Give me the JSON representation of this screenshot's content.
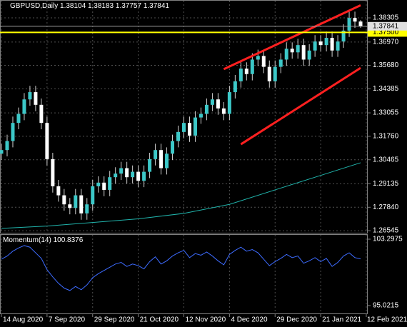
{
  "chart_data": [
    {
      "type": "candlestick",
      "title": "GBPUSD,Daily",
      "up_color": "#3cc8c8",
      "down_color": "#ffffff",
      "wick_color": "#d0d0d0",
      "open": [
        1.308,
        1.31,
        1.315,
        1.325,
        1.33,
        1.338,
        1.342,
        1.335,
        1.325,
        1.305,
        1.29,
        1.285,
        1.28,
        1.278,
        1.285,
        1.275,
        1.28,
        1.29,
        1.292,
        1.288,
        1.295,
        1.297,
        1.3,
        1.295,
        1.298,
        1.293,
        1.298,
        1.305,
        1.31,
        1.3,
        1.308,
        1.315,
        1.32,
        1.325,
        1.318,
        1.328,
        1.33,
        1.335,
        1.338,
        1.333,
        1.33,
        1.342,
        1.348,
        1.355,
        1.352,
        1.36,
        1.362,
        1.356,
        1.348,
        1.356,
        1.36,
        1.366,
        1.364,
        1.368,
        1.36,
        1.365,
        1.37,
        1.368,
        1.372,
        1.365,
        1.37,
        1.376,
        1.383,
        1.38104
      ],
      "high": [
        1.3135,
        1.3185,
        1.3285,
        1.3335,
        1.3415,
        1.3455,
        1.3455,
        1.3385,
        1.3285,
        1.3085,
        1.2935,
        1.2885,
        1.2835,
        1.2885,
        1.2885,
        1.2835,
        1.2935,
        1.2955,
        1.2955,
        1.2985,
        1.3005,
        1.3035,
        1.3035,
        1.3015,
        1.3015,
        1.3015,
        1.3085,
        1.3135,
        1.3135,
        1.3115,
        1.3185,
        1.3235,
        1.3285,
        1.3285,
        1.3315,
        1.3335,
        1.3385,
        1.3415,
        1.3415,
        1.3365,
        1.3455,
        1.3515,
        1.3585,
        1.3585,
        1.3635,
        1.3655,
        1.3655,
        1.3595,
        1.3595,
        1.3635,
        1.3695,
        1.3695,
        1.3715,
        1.3715,
        1.3685,
        1.3735,
        1.3735,
        1.3755,
        1.3755,
        1.3735,
        1.3795,
        1.3865,
        1.3865,
        1.38183
      ],
      "low": [
        1.3045,
        1.3065,
        1.3115,
        1.3215,
        1.3265,
        1.3345,
        1.3315,
        1.3215,
        1.3015,
        1.2865,
        1.2815,
        1.2765,
        1.2745,
        1.2745,
        1.2715,
        1.2715,
        1.2765,
        1.2865,
        1.2845,
        1.2845,
        1.2915,
        1.2935,
        1.2915,
        1.2915,
        1.2895,
        1.2895,
        1.2945,
        1.3015,
        1.2965,
        1.2965,
        1.3045,
        1.3115,
        1.3165,
        1.3145,
        1.3145,
        1.3245,
        1.3265,
        1.3315,
        1.3295,
        1.3265,
        1.3265,
        1.3385,
        1.3445,
        1.3485,
        1.3485,
        1.3565,
        1.3525,
        1.3445,
        1.3445,
        1.3525,
        1.3565,
        1.3605,
        1.3605,
        1.3565,
        1.3565,
        1.3615,
        1.3645,
        1.3645,
        1.3615,
        1.3615,
        1.3665,
        1.3725,
        1.3775,
        1.37757
      ],
      "close": [
        1.31,
        1.315,
        1.325,
        1.33,
        1.338,
        1.342,
        1.335,
        1.325,
        1.305,
        1.29,
        1.285,
        1.28,
        1.278,
        1.285,
        1.275,
        1.28,
        1.29,
        1.292,
        1.288,
        1.295,
        1.297,
        1.3,
        1.295,
        1.298,
        1.293,
        1.298,
        1.305,
        1.31,
        1.3,
        1.308,
        1.315,
        1.32,
        1.325,
        1.318,
        1.328,
        1.33,
        1.335,
        1.338,
        1.333,
        1.33,
        1.342,
        1.348,
        1.355,
        1.352,
        1.36,
        1.362,
        1.356,
        1.348,
        1.356,
        1.36,
        1.366,
        1.364,
        1.368,
        1.36,
        1.365,
        1.37,
        1.368,
        1.372,
        1.365,
        1.37,
        1.376,
        1.383,
        1.381,
        1.37841
      ],
      "xlim": [
        -0.25,
        64.125
      ],
      "xticks": [
        {
          "value": 0,
          "label": "14 Aug 2020"
        },
        {
          "value": 8,
          "label": "7 Sep 2020"
        },
        {
          "value": 16,
          "label": "29 Sep 2020"
        },
        {
          "value": 24,
          "label": "21 Oct 2020"
        },
        {
          "value": 32,
          "label": "12 Nov 2020"
        },
        {
          "value": 40,
          "label": "4 Dec 2020"
        },
        {
          "value": 48,
          "label": "29 Dec 2020"
        },
        {
          "value": 56,
          "label": "21 Jan 2021"
        },
        {
          "value": 64,
          "label": "12 Feb 2021"
        }
      ],
      "ylim": [
        1.2647,
        1.3874
      ],
      "yticks": [
        1.38305,
        {
          "value": 1.3697,
          "label": "1.36970"
        },
        {
          "value": 1.3568,
          "label": "1.35680"
        },
        1.34385,
        1.33055,
        {
          "value": 1.3176,
          "label": "1.31760"
        },
        1.30465,
        1.29135,
        {
          "value": 1.2784,
          "label": "1.27840"
        },
        1.26545
      ],
      "grid": true,
      "hlines": [
        {
          "value": 1.375,
          "label": "1.37500",
          "color": "#ffff00"
        }
      ],
      "trendlines": [
        {
          "color": "#ff2020",
          "x": [
            39,
            63
          ],
          "y": [
            1.3547,
            1.39
          ]
        },
        {
          "color": "#ff2020",
          "x": [
            42,
            63
          ],
          "y": [
            1.3132,
            1.3554
          ]
        }
      ],
      "overlays": [
        {
          "color": "#20b2aa",
          "x": [
            0,
            8,
            16,
            24,
            32,
            40,
            48,
            56,
            63
          ],
          "values": [
            1.2667,
            1.268,
            1.27,
            1.272,
            1.275,
            1.28,
            1.288,
            1.296,
            1.303
          ]
        }
      ]
    },
    {
      "type": "line",
      "title": "Momentum(14)",
      "color": "#3d6bff",
      "values": [
        100.8,
        101.2,
        101.8,
        102.2,
        102.5,
        102.3,
        101.6,
        100.9,
        99.5,
        98.6,
        97.8,
        97.2,
        96.9,
        97.4,
        97.0,
        97.6,
        98.5,
        99.0,
        99.4,
        99.8,
        100.2,
        100.4,
        99.9,
        100.2,
        100.0,
        99.6,
        100.5,
        101.1,
        100.2,
        100.6,
        101.2,
        101.6,
        101.9,
        101.0,
        101.5,
        101.3,
        101.7,
        101.2,
        100.6,
        100.1,
        101.4,
        101.9,
        102.3,
        101.8,
        102.0,
        101.6,
        100.8,
        100.0,
        100.5,
        100.9,
        101.4,
        101.0,
        101.2,
        100.3,
        100.6,
        101.0,
        100.5,
        100.9,
        99.9,
        100.4,
        101.2,
        101.6,
        101.0,
        100.8376
      ],
      "ylim": [
        95.0215,
        103.2975
      ],
      "yticks": [
        103.2975,
        95.0215
      ]
    }
  ]
}
